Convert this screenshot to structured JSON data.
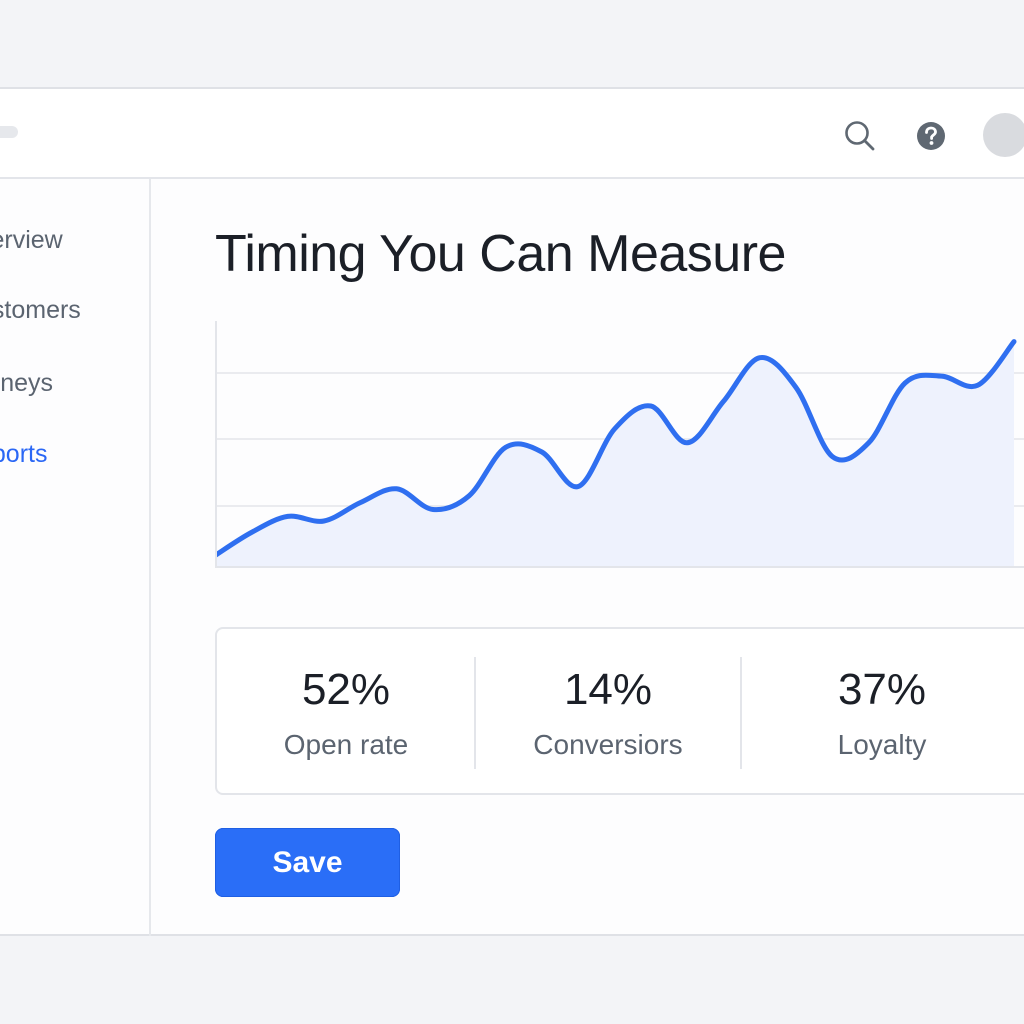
{
  "header": {
    "icons": {
      "search": "search-icon",
      "help": "help-icon",
      "avatar": "avatar"
    }
  },
  "sidebar": {
    "items": [
      {
        "label": "verview",
        "active": false
      },
      {
        "label": "ustomers",
        "active": false
      },
      {
        "label": "urneys",
        "active": false
      },
      {
        "label": "eports",
        "active": true
      }
    ]
  },
  "main": {
    "title": "Timing You Can Measure"
  },
  "chart_data": {
    "type": "area",
    "title": "",
    "xlabel": "",
    "ylabel": "",
    "x": [
      0,
      1,
      2,
      3,
      4,
      5,
      6,
      7,
      8,
      9,
      10,
      11,
      12,
      13,
      14,
      15,
      16,
      17,
      18,
      19,
      20,
      21,
      22
    ],
    "values": [
      5,
      15,
      22,
      20,
      28,
      34,
      25,
      31,
      52,
      50,
      35,
      60,
      70,
      54,
      72,
      91,
      78,
      48,
      54,
      80,
      83,
      79,
      98
    ],
    "ylim": [
      0,
      100
    ],
    "grid": true,
    "colors": {
      "line": "#2f6ff0",
      "fill": "#eef2fd",
      "grid": "#e3e5ea"
    }
  },
  "stats": [
    {
      "value": "52%",
      "label": "Open rate"
    },
    {
      "value": "14%",
      "label": "Conversiors"
    },
    {
      "value": "37%",
      "label": "Loyalty"
    }
  ],
  "actions": {
    "save_label": "Save"
  },
  "colors": {
    "accent": "#2a6ef7",
    "nav_active": "#2a67f5",
    "text_muted": "#5b6470"
  }
}
